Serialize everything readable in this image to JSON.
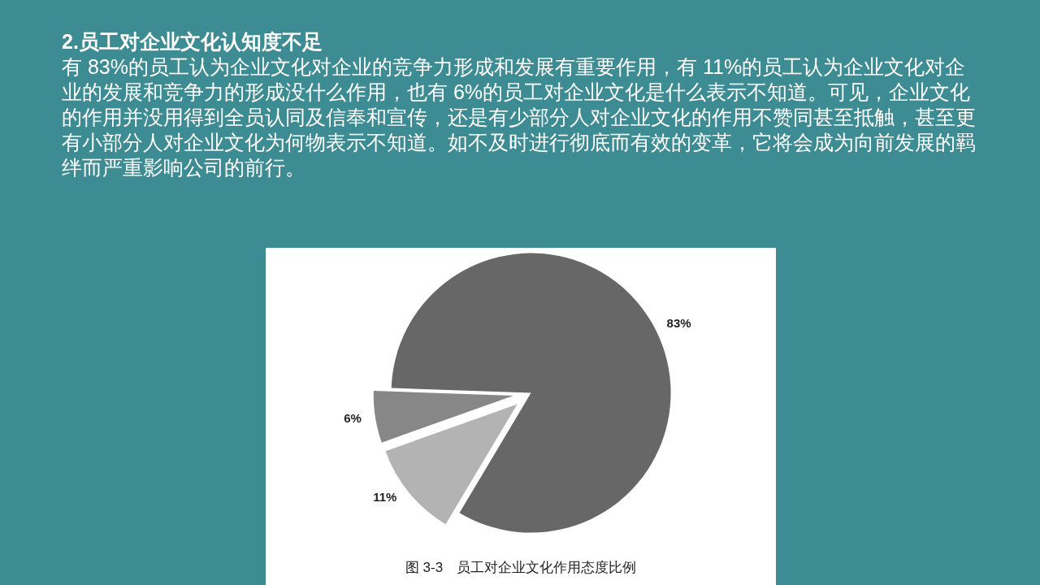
{
  "chart_data": {
    "type": "pie",
    "title": "2.员工对企业文化认知度不足",
    "subtitle": "有 83%的员工认为企业文化对企业的竞争力形成和发展有重要作用，有 11%的员工认为企业文化对企业的发展和竞争力的形成没什么作用，也有 6%的员工对企业文化是什么表示不知道。可见，企业文化的作用并没用得到全员认同及信奉和宣传，还是有少部分人对企业文化的作用不赞同甚至抵触，甚至更有小部分人对企业文化为何物表示不知道。如不及时进行彻底而有效的变革，它将会成为向前发展的羁绊而严重影响公司的前行。",
    "categories": [
      null,
      null,
      null
    ],
    "values": [
      83,
      11,
      6
    ],
    "colors": [
      "#676767",
      "#b3b3b3",
      "#878787"
    ],
    "value_labels": [
      "83%",
      "11%",
      "6%"
    ],
    "annotations": [
      "图 3-3　员工对企业文化作用态度比例"
    ]
  }
}
